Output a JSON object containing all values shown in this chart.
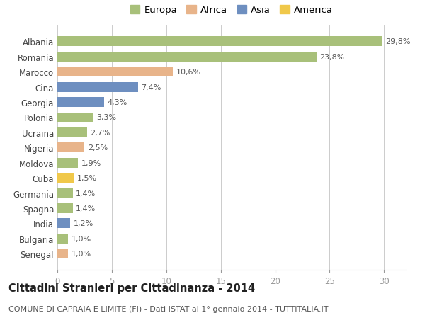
{
  "categories": [
    "Albania",
    "Romania",
    "Marocco",
    "Cina",
    "Georgia",
    "Polonia",
    "Ucraina",
    "Nigeria",
    "Moldova",
    "Cuba",
    "Germania",
    "Spagna",
    "India",
    "Bulgaria",
    "Senegal"
  ],
  "values": [
    29.8,
    23.8,
    10.6,
    7.4,
    4.3,
    3.3,
    2.7,
    2.5,
    1.9,
    1.5,
    1.4,
    1.4,
    1.2,
    1.0,
    1.0
  ],
  "labels": [
    "29,8%",
    "23,8%",
    "10,6%",
    "7,4%",
    "4,3%",
    "3,3%",
    "2,7%",
    "2,5%",
    "1,9%",
    "1,5%",
    "1,4%",
    "1,4%",
    "1,2%",
    "1,0%",
    "1,0%"
  ],
  "continents": [
    "Europa",
    "Europa",
    "Africa",
    "Asia",
    "Asia",
    "Europa",
    "Europa",
    "Africa",
    "Europa",
    "America",
    "Europa",
    "Europa",
    "Asia",
    "Europa",
    "Africa"
  ],
  "continent_colors": {
    "Europa": "#a8c07a",
    "Africa": "#e8b48a",
    "Asia": "#6e8fc0",
    "America": "#f0c84a"
  },
  "legend_order": [
    "Europa",
    "Africa",
    "Asia",
    "America"
  ],
  "title": "Cittadini Stranieri per Cittadinanza - 2014",
  "subtitle": "COMUNE DI CAPRAIA E LIMITE (FI) - Dati ISTAT al 1° gennaio 2014 - TUTTITALIA.IT",
  "xlim": [
    0,
    32
  ],
  "xticks": [
    0,
    5,
    10,
    15,
    20,
    25,
    30
  ],
  "bg_color": "#ffffff",
  "grid_color": "#cccccc",
  "bar_height": 0.65,
  "title_fontsize": 10.5,
  "subtitle_fontsize": 8.0,
  "label_fontsize": 8.0,
  "tick_fontsize": 8.5,
  "legend_fontsize": 9.5
}
